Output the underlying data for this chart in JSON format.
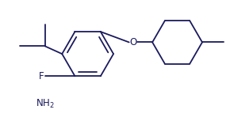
{
  "bg_color": "#ffffff",
  "line_color": "#1a1a5e",
  "line_width": 1.3,
  "font_size": 8.5,
  "figsize": [
    2.9,
    1.53
  ],
  "dpi": 100
}
